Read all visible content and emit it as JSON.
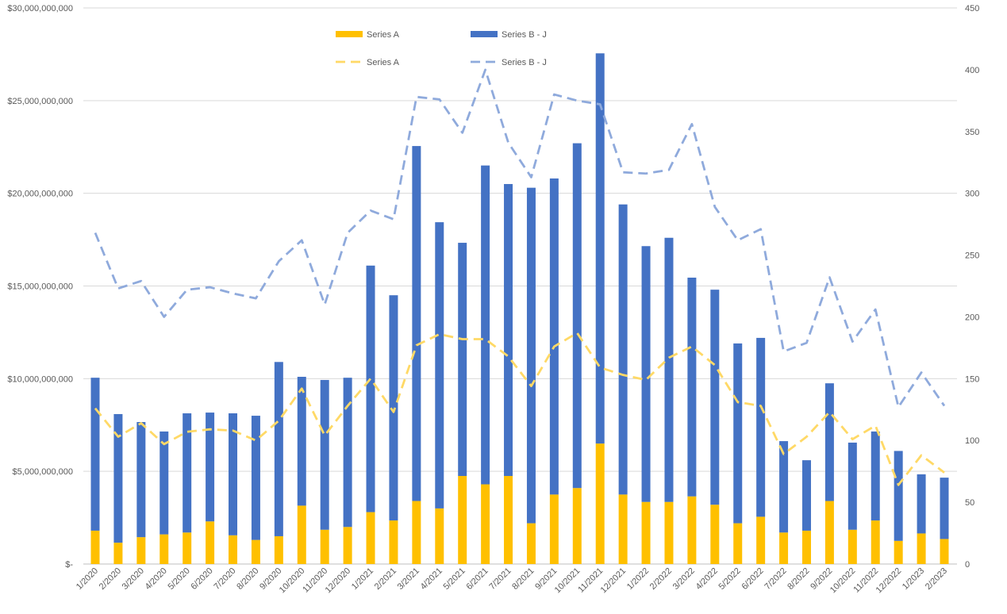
{
  "chart_data": {
    "type": "bar",
    "title": "",
    "categories": [
      "1/2020",
      "2/2020",
      "3/2020",
      "4/2020",
      "5/2020",
      "6/2020",
      "7/2020",
      "8/2020",
      "9/2020",
      "10/2020",
      "11/2020",
      "12/2020",
      "1/2021",
      "2/2021",
      "3/2021",
      "4/2021",
      "5/2021",
      "6/2021",
      "7/2021",
      "8/2021",
      "9/2021",
      "10/2021",
      "11/2021",
      "12/2021",
      "1/2022",
      "2/2022",
      "3/2022",
      "4/2022",
      "5/2022",
      "6/2022",
      "7/2022",
      "8/2022",
      "9/2022",
      "10/2022",
      "11/2022",
      "12/2022",
      "1/2023",
      "2/2023"
    ],
    "y_left": {
      "range": [
        0,
        30000000000
      ],
      "ticks": [
        "$-",
        "$5,000,000,000",
        "$10,000,000,000",
        "$15,000,000,000",
        "$20,000,000,000",
        "$25,000,000,000",
        "$30,000,000,000"
      ]
    },
    "y_right": {
      "range": [
        0,
        450
      ],
      "ticks": [
        "0",
        "50",
        "100",
        "150",
        "200",
        "250",
        "300",
        "350",
        "400",
        "450"
      ]
    },
    "grid": true,
    "legend": "top-center",
    "series": [
      {
        "name": "Series A",
        "kind": "stacked-bar",
        "axis": "left",
        "color": "#FFC000",
        "unit": "billions USD",
        "values": [
          1.8,
          1.15,
          1.45,
          1.6,
          1.7,
          2.3,
          1.55,
          1.3,
          1.5,
          3.15,
          1.85,
          2.0,
          2.8,
          2.35,
          3.4,
          3.0,
          4.75,
          4.3,
          4.75,
          2.2,
          3.75,
          4.1,
          6.5,
          3.75,
          3.35,
          3.35,
          3.65,
          3.2,
          2.2,
          2.55,
          1.7,
          1.8,
          3.4,
          1.85,
          2.35,
          1.25,
          1.65,
          1.35
        ]
      },
      {
        "name": "Series B - J",
        "kind": "stacked-bar",
        "axis": "left",
        "color": "#4472C4",
        "unit": "billions USD",
        "values": [
          8.25,
          6.94,
          6.21,
          5.55,
          6.43,
          5.87,
          6.58,
          6.7,
          9.4,
          6.95,
          8.08,
          8.05,
          13.3,
          12.15,
          19.15,
          15.44,
          12.58,
          17.2,
          15.75,
          18.1,
          17.05,
          18.6,
          21.05,
          15.65,
          13.8,
          14.25,
          11.8,
          11.6,
          9.7,
          9.65,
          4.93,
          3.8,
          6.35,
          4.7,
          4.8,
          4.85,
          3.19,
          3.31
        ]
      },
      {
        "name": "Series A",
        "kind": "dashed-line",
        "axis": "right",
        "color": "#FFD966",
        "values": [
          126,
          103,
          114,
          97,
          107,
          109,
          108,
          100,
          116,
          142,
          104,
          128,
          150,
          123,
          177,
          186,
          182,
          182,
          168,
          144,
          176,
          187,
          159,
          153,
          149,
          167,
          176,
          161,
          131,
          128,
          89,
          103,
          123,
          101,
          112,
          64,
          88,
          74
        ]
      },
      {
        "name": "Series B - J",
        "kind": "dashed-line",
        "axis": "right",
        "color": "#8FAADC",
        "values": [
          268,
          223,
          229,
          200,
          222,
          224,
          219,
          215,
          245,
          262,
          210,
          268,
          286,
          279,
          378,
          376,
          349,
          400,
          341,
          313,
          380,
          375,
          372,
          317,
          316,
          319,
          356,
          289,
          262,
          271,
          172,
          179,
          232,
          180,
          206,
          127,
          155,
          128
        ]
      }
    ]
  }
}
